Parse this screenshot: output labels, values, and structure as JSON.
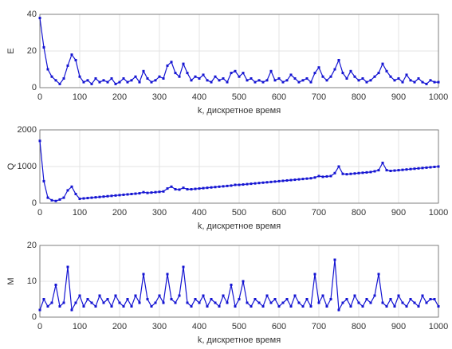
{
  "chart_data": [
    {
      "type": "line",
      "xlabel": "k, дискретное время",
      "ylabel": "E",
      "color": "#1414d2",
      "grid": true,
      "xlim": [
        0,
        1000
      ],
      "xticks": [
        0,
        100,
        200,
        300,
        400,
        500,
        600,
        700,
        800,
        900,
        1000
      ],
      "ylim": [
        0,
        40
      ],
      "yticks": [
        0,
        20,
        40
      ],
      "x": [
        0,
        10,
        20,
        30,
        40,
        50,
        60,
        70,
        80,
        90,
        100,
        110,
        120,
        130,
        140,
        150,
        160,
        170,
        180,
        190,
        200,
        210,
        220,
        230,
        240,
        250,
        260,
        270,
        280,
        290,
        300,
        310,
        320,
        330,
        340,
        350,
        360,
        370,
        380,
        390,
        400,
        410,
        420,
        430,
        440,
        450,
        460,
        470,
        480,
        490,
        500,
        510,
        520,
        530,
        540,
        550,
        560,
        570,
        580,
        590,
        600,
        610,
        620,
        630,
        640,
        650,
        660,
        670,
        680,
        690,
        700,
        710,
        720,
        730,
        740,
        750,
        760,
        770,
        780,
        790,
        800,
        810,
        820,
        830,
        840,
        850,
        860,
        870,
        880,
        890,
        900,
        910,
        920,
        930,
        940,
        950,
        960,
        970,
        980,
        990,
        1000
      ],
      "values": [
        38,
        22,
        10,
        6,
        4,
        2,
        5,
        12,
        18,
        15,
        6,
        3,
        4,
        2,
        5,
        3,
        4,
        3,
        5,
        2,
        3,
        5,
        3,
        4,
        6,
        3,
        9,
        5,
        3,
        4,
        6,
        5,
        12,
        14,
        8,
        6,
        13,
        8,
        4,
        6,
        5,
        7,
        4,
        3,
        6,
        4,
        5,
        3,
        8,
        9,
        6,
        8,
        4,
        5,
        3,
        4,
        3,
        4,
        9,
        4,
        5,
        3,
        4,
        7,
        5,
        3,
        4,
        5,
        3,
        8,
        11,
        6,
        4,
        6,
        10,
        15,
        8,
        5,
        9,
        6,
        4,
        5,
        3,
        4,
        6,
        8,
        13,
        9,
        6,
        4,
        5,
        3,
        7,
        4,
        3,
        5,
        3,
        2,
        4,
        3,
        3
      ]
    },
    {
      "type": "line",
      "xlabel": "k, дискретное время",
      "ylabel": "Q",
      "color": "#1414d2",
      "grid": true,
      "xlim": [
        0,
        1000
      ],
      "xticks": [
        0,
        100,
        200,
        300,
        400,
        500,
        600,
        700,
        800,
        900,
        1000
      ],
      "ylim": [
        0,
        2000
      ],
      "yticks": [
        0,
        1000,
        2000
      ],
      "x": [
        0,
        10,
        20,
        30,
        40,
        50,
        60,
        70,
        80,
        90,
        100,
        110,
        120,
        130,
        140,
        150,
        160,
        170,
        180,
        190,
        200,
        210,
        220,
        230,
        240,
        250,
        260,
        270,
        280,
        290,
        300,
        310,
        320,
        330,
        340,
        350,
        360,
        370,
        380,
        390,
        400,
        410,
        420,
        430,
        440,
        450,
        460,
        470,
        480,
        490,
        500,
        510,
        520,
        530,
        540,
        550,
        560,
        570,
        580,
        590,
        600,
        610,
        620,
        630,
        640,
        650,
        660,
        670,
        680,
        690,
        700,
        710,
        720,
        730,
        740,
        750,
        760,
        770,
        780,
        790,
        800,
        810,
        820,
        830,
        840,
        850,
        860,
        870,
        880,
        890,
        900,
        910,
        920,
        930,
        940,
        950,
        960,
        970,
        980,
        990,
        1000
      ],
      "values": [
        1700,
        600,
        150,
        80,
        60,
        100,
        150,
        350,
        450,
        250,
        120,
        130,
        140,
        150,
        160,
        170,
        180,
        190,
        200,
        210,
        220,
        230,
        240,
        250,
        260,
        270,
        300,
        280,
        290,
        300,
        310,
        320,
        400,
        450,
        380,
        370,
        420,
        380,
        380,
        390,
        400,
        410,
        420,
        430,
        440,
        450,
        460,
        470,
        480,
        500,
        500,
        510,
        520,
        530,
        540,
        550,
        560,
        570,
        580,
        590,
        600,
        610,
        620,
        630,
        640,
        650,
        660,
        670,
        680,
        700,
        740,
        720,
        730,
        740,
        820,
        1000,
        800,
        790,
        800,
        810,
        820,
        830,
        840,
        850,
        870,
        900,
        1100,
        900,
        880,
        890,
        900,
        910,
        920,
        930,
        940,
        950,
        960,
        970,
        980,
        990,
        1000
      ]
    },
    {
      "type": "line",
      "xlabel": "k, дискретное время",
      "ylabel": "M",
      "color": "#1414d2",
      "grid": true,
      "xlim": [
        0,
        1000
      ],
      "xticks": [
        0,
        100,
        200,
        300,
        400,
        500,
        600,
        700,
        800,
        900,
        1000
      ],
      "ylim": [
        0,
        20
      ],
      "yticks": [
        0,
        10,
        20
      ],
      "x": [
        0,
        10,
        20,
        30,
        40,
        50,
        60,
        70,
        80,
        90,
        100,
        110,
        120,
        130,
        140,
        150,
        160,
        170,
        180,
        190,
        200,
        210,
        220,
        230,
        240,
        250,
        260,
        270,
        280,
        290,
        300,
        310,
        320,
        330,
        340,
        350,
        360,
        370,
        380,
        390,
        400,
        410,
        420,
        430,
        440,
        450,
        460,
        470,
        480,
        490,
        500,
        510,
        520,
        530,
        540,
        550,
        560,
        570,
        580,
        590,
        600,
        610,
        620,
        630,
        640,
        650,
        660,
        670,
        680,
        690,
        700,
        710,
        720,
        730,
        740,
        750,
        760,
        770,
        780,
        790,
        800,
        810,
        820,
        830,
        840,
        850,
        860,
        870,
        880,
        890,
        900,
        910,
        920,
        930,
        940,
        950,
        960,
        970,
        980,
        990,
        1000
      ],
      "values": [
        2,
        5,
        3,
        4,
        9,
        3,
        4,
        14,
        2,
        4,
        6,
        3,
        5,
        4,
        3,
        6,
        4,
        5,
        3,
        6,
        4,
        3,
        5,
        3,
        6,
        4,
        12,
        5,
        3,
        4,
        6,
        4,
        12,
        5,
        4,
        6,
        14,
        4,
        3,
        5,
        4,
        6,
        3,
        5,
        4,
        3,
        6,
        4,
        9,
        3,
        5,
        10,
        4,
        3,
        5,
        4,
        3,
        6,
        4,
        5,
        3,
        4,
        5,
        3,
        6,
        4,
        3,
        5,
        3,
        12,
        4,
        6,
        3,
        5,
        16,
        2,
        4,
        5,
        3,
        6,
        4,
        3,
        5,
        4,
        6,
        12,
        4,
        3,
        5,
        3,
        6,
        4,
        3,
        5,
        4,
        3,
        6,
        4,
        5,
        5,
        3
      ]
    }
  ]
}
